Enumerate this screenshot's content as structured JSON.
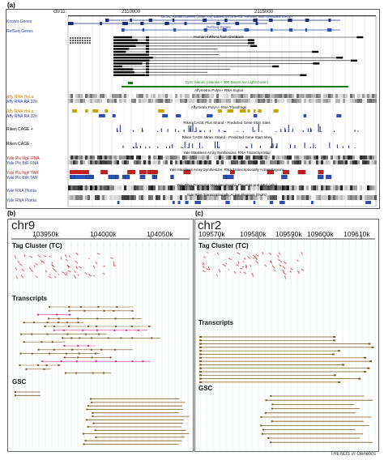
{
  "panel_a": {
    "label": "(a)",
    "chrom": "chr11:",
    "ticks": [
      "2110000",
      "2115000"
    ],
    "titles": {
      "known": "UCSC Known Genes (June, 05) Based on UniProt, RefSeq, and GenBank mRNA",
      "refseq": "RefSeq Genes",
      "mrna": "Human mRNAs from GenBank",
      "cpg": "CpG Islands (Islands < 300 Bases are Light Green)",
      "affy_signal": "Affymetrix PolyA+ RNA Signal",
      "affy_frags": "Affymetrix PolyA+ RNA Transfrags",
      "riken_plus": "Riken CAGE Plus Strand - Predicted Gene Start Sites",
      "riken_minus": "Riken CAGE Minus Strand - Predicted Gene Start Sites",
      "yale_map": "Yale Maskless Array Synthesizer, RNA Transcript Map",
      "yale_tars": "Yale Maskless Array Synthesizer, RNA Transcriptionally Active Regions",
      "yale_map2": "Yale RNA Transcript Map (Neutrophil, Placenta and NB4 cells)",
      "yale_tars2": "Yale RNA Transcriptionally Active Regions (TARs)"
    },
    "tracks": [
      {
        "label": "Known Genes",
        "style": "b"
      },
      {
        "label": "RefSeq Genes",
        "style": "b"
      },
      {
        "label": "Affy RNA HeLa",
        "style": "y"
      },
      {
        "label": "Affy RNA RA 32h",
        "style": "b"
      },
      {
        "label": "Affy RNA HeLa",
        "style": "y"
      },
      {
        "label": "Affy RNA RA 32h",
        "style": "b"
      },
      {
        "label": "Riken CAGE +",
        "style": "k"
      },
      {
        "label": "Riken CAGE -",
        "style": "k"
      },
      {
        "label": "Yale Plc NgF RNA",
        "style": "r"
      },
      {
        "label": "Yale Plc BtR RNA",
        "style": "b"
      },
      {
        "label": "Yale Plc NgF TAR",
        "style": "r"
      },
      {
        "label": "Yale Plc BtR TAR",
        "style": "b"
      },
      {
        "label": "Yale RNA Plonta",
        "style": "b"
      },
      {
        "label": "Yale RNA Plonta",
        "style": "b"
      }
    ]
  },
  "panel_b": {
    "label": "(b)",
    "chrom": "chr9",
    "ticks": [
      "103950k",
      "104000k",
      "104050k"
    ],
    "sections": [
      "Tag Cluster (TC)",
      "Transcripts",
      "GSC"
    ]
  },
  "panel_c": {
    "label": "(c)",
    "chrom": "chr2",
    "ticks": [
      "109570k",
      "109580k",
      "109590k",
      "109600k",
      "109610k"
    ],
    "sections": [
      "Tag Cluster (TC)",
      "Transcripts",
      "GSC"
    ]
  },
  "footer": "TRENDS in Genetics",
  "colors": {
    "navy": "#1a2a7a",
    "blue": "#2a4fb5",
    "gold": "#c8a000",
    "red": "#c42020",
    "green": "#1a7a1a",
    "brown": "#7a5a1a"
  }
}
